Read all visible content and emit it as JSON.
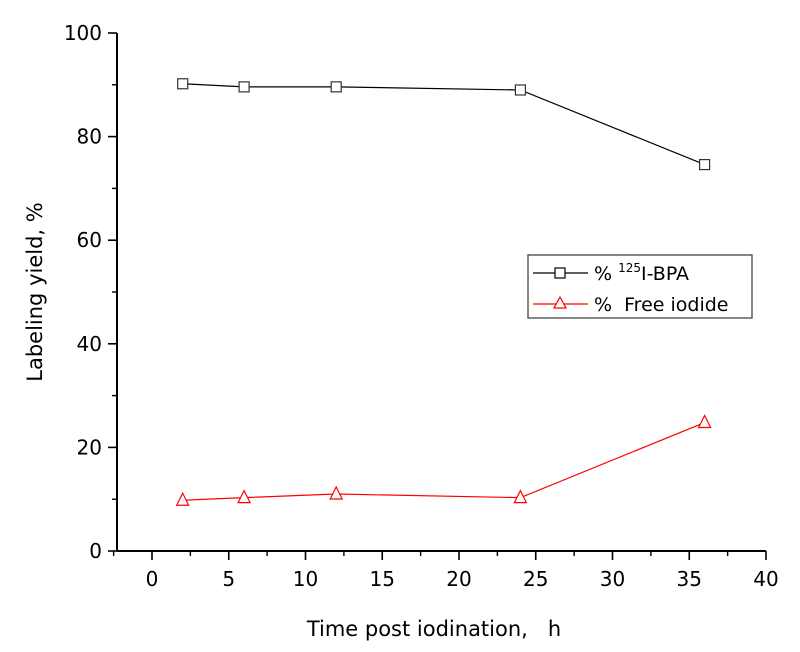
{
  "chart_data": {
    "type": "line",
    "title": "",
    "xlabel": "Time post iodination,   h",
    "ylabel": "Labeling yield, %",
    "xlim": [
      -2.5,
      40
    ],
    "ylim": [
      0,
      100
    ],
    "x_ticks": [
      0,
      5,
      10,
      15,
      20,
      25,
      30,
      35,
      40
    ],
    "x_tick_labels": [
      "0",
      "5",
      "10",
      "15",
      "20",
      "25",
      "30",
      "35",
      "40"
    ],
    "y_ticks": [
      0,
      20,
      40,
      60,
      80,
      100
    ],
    "y_tick_labels": [
      "0",
      "20",
      "40",
      "60",
      "80",
      "100"
    ],
    "grid": false,
    "legend_position": "center-right",
    "x": [
      2,
      6,
      12,
      24,
      36
    ],
    "series": [
      {
        "name": "% 125I-BPA",
        "legend_prefix": "% ",
        "legend_superscript": "125",
        "legend_suffix": "I-BPA",
        "marker": "square",
        "color": "#000000",
        "values": [
          90.2,
          89.6,
          89.6,
          89.0,
          74.6
        ]
      },
      {
        "name": "%  Free iodide",
        "legend_label": "%  Free iodide",
        "marker": "triangle",
        "color": "#ff0000",
        "values": [
          9.8,
          10.3,
          11.0,
          10.3,
          24.8
        ]
      }
    ]
  }
}
